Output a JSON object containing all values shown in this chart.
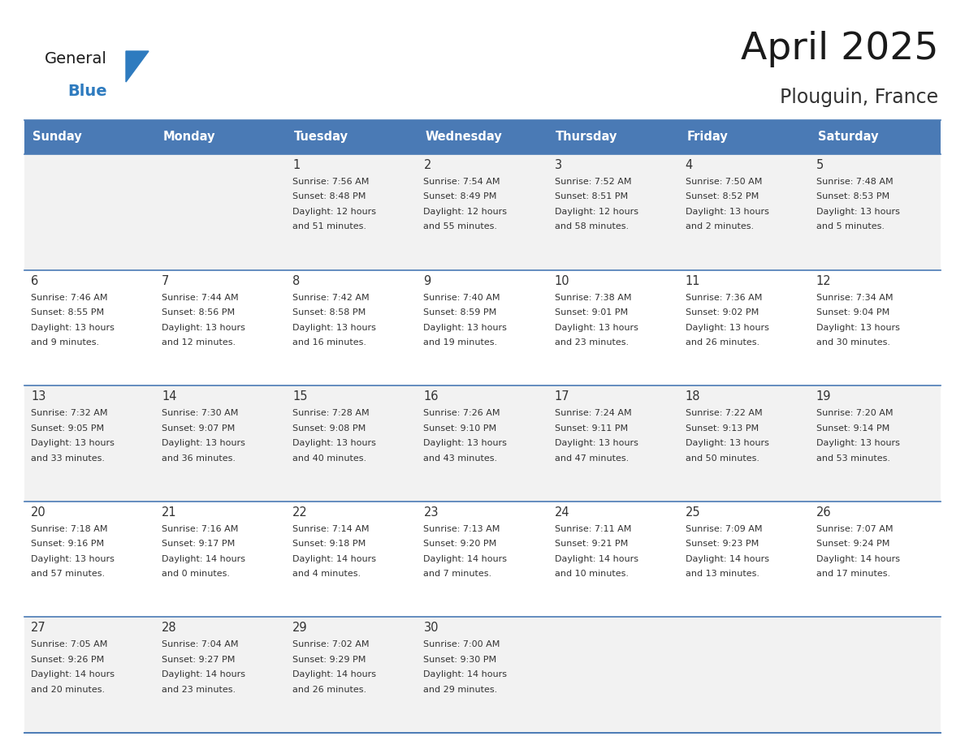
{
  "title": "April 2025",
  "subtitle": "Plouguin, France",
  "header_color": "#4a7ab5",
  "header_text_color": "#ffffff",
  "text_color": "#333333",
  "line_color": "#4a7ab5",
  "day_headers": [
    "Sunday",
    "Monday",
    "Tuesday",
    "Wednesday",
    "Thursday",
    "Friday",
    "Saturday"
  ],
  "logo_tri_color": "#2e7bbf",
  "logo_general_color": "#1a1a1a",
  "logo_blue_color": "#2e7bbf",
  "days": [
    {
      "day": null,
      "info": null
    },
    {
      "day": null,
      "info": null
    },
    {
      "day": "1",
      "info": [
        "Sunrise: 7:56 AM",
        "Sunset: 8:48 PM",
        "Daylight: 12 hours",
        "and 51 minutes."
      ]
    },
    {
      "day": "2",
      "info": [
        "Sunrise: 7:54 AM",
        "Sunset: 8:49 PM",
        "Daylight: 12 hours",
        "and 55 minutes."
      ]
    },
    {
      "day": "3",
      "info": [
        "Sunrise: 7:52 AM",
        "Sunset: 8:51 PM",
        "Daylight: 12 hours",
        "and 58 minutes."
      ]
    },
    {
      "day": "4",
      "info": [
        "Sunrise: 7:50 AM",
        "Sunset: 8:52 PM",
        "Daylight: 13 hours",
        "and 2 minutes."
      ]
    },
    {
      "day": "5",
      "info": [
        "Sunrise: 7:48 AM",
        "Sunset: 8:53 PM",
        "Daylight: 13 hours",
        "and 5 minutes."
      ]
    },
    {
      "day": "6",
      "info": [
        "Sunrise: 7:46 AM",
        "Sunset: 8:55 PM",
        "Daylight: 13 hours",
        "and 9 minutes."
      ]
    },
    {
      "day": "7",
      "info": [
        "Sunrise: 7:44 AM",
        "Sunset: 8:56 PM",
        "Daylight: 13 hours",
        "and 12 minutes."
      ]
    },
    {
      "day": "8",
      "info": [
        "Sunrise: 7:42 AM",
        "Sunset: 8:58 PM",
        "Daylight: 13 hours",
        "and 16 minutes."
      ]
    },
    {
      "day": "9",
      "info": [
        "Sunrise: 7:40 AM",
        "Sunset: 8:59 PM",
        "Daylight: 13 hours",
        "and 19 minutes."
      ]
    },
    {
      "day": "10",
      "info": [
        "Sunrise: 7:38 AM",
        "Sunset: 9:01 PM",
        "Daylight: 13 hours",
        "and 23 minutes."
      ]
    },
    {
      "day": "11",
      "info": [
        "Sunrise: 7:36 AM",
        "Sunset: 9:02 PM",
        "Daylight: 13 hours",
        "and 26 minutes."
      ]
    },
    {
      "day": "12",
      "info": [
        "Sunrise: 7:34 AM",
        "Sunset: 9:04 PM",
        "Daylight: 13 hours",
        "and 30 minutes."
      ]
    },
    {
      "day": "13",
      "info": [
        "Sunrise: 7:32 AM",
        "Sunset: 9:05 PM",
        "Daylight: 13 hours",
        "and 33 minutes."
      ]
    },
    {
      "day": "14",
      "info": [
        "Sunrise: 7:30 AM",
        "Sunset: 9:07 PM",
        "Daylight: 13 hours",
        "and 36 minutes."
      ]
    },
    {
      "day": "15",
      "info": [
        "Sunrise: 7:28 AM",
        "Sunset: 9:08 PM",
        "Daylight: 13 hours",
        "and 40 minutes."
      ]
    },
    {
      "day": "16",
      "info": [
        "Sunrise: 7:26 AM",
        "Sunset: 9:10 PM",
        "Daylight: 13 hours",
        "and 43 minutes."
      ]
    },
    {
      "day": "17",
      "info": [
        "Sunrise: 7:24 AM",
        "Sunset: 9:11 PM",
        "Daylight: 13 hours",
        "and 47 minutes."
      ]
    },
    {
      "day": "18",
      "info": [
        "Sunrise: 7:22 AM",
        "Sunset: 9:13 PM",
        "Daylight: 13 hours",
        "and 50 minutes."
      ]
    },
    {
      "day": "19",
      "info": [
        "Sunrise: 7:20 AM",
        "Sunset: 9:14 PM",
        "Daylight: 13 hours",
        "and 53 minutes."
      ]
    },
    {
      "day": "20",
      "info": [
        "Sunrise: 7:18 AM",
        "Sunset: 9:16 PM",
        "Daylight: 13 hours",
        "and 57 minutes."
      ]
    },
    {
      "day": "21",
      "info": [
        "Sunrise: 7:16 AM",
        "Sunset: 9:17 PM",
        "Daylight: 14 hours",
        "and 0 minutes."
      ]
    },
    {
      "day": "22",
      "info": [
        "Sunrise: 7:14 AM",
        "Sunset: 9:18 PM",
        "Daylight: 14 hours",
        "and 4 minutes."
      ]
    },
    {
      "day": "23",
      "info": [
        "Sunrise: 7:13 AM",
        "Sunset: 9:20 PM",
        "Daylight: 14 hours",
        "and 7 minutes."
      ]
    },
    {
      "day": "24",
      "info": [
        "Sunrise: 7:11 AM",
        "Sunset: 9:21 PM",
        "Daylight: 14 hours",
        "and 10 minutes."
      ]
    },
    {
      "day": "25",
      "info": [
        "Sunrise: 7:09 AM",
        "Sunset: 9:23 PM",
        "Daylight: 14 hours",
        "and 13 minutes."
      ]
    },
    {
      "day": "26",
      "info": [
        "Sunrise: 7:07 AM",
        "Sunset: 9:24 PM",
        "Daylight: 14 hours",
        "and 17 minutes."
      ]
    },
    {
      "day": "27",
      "info": [
        "Sunrise: 7:05 AM",
        "Sunset: 9:26 PM",
        "Daylight: 14 hours",
        "and 20 minutes."
      ]
    },
    {
      "day": "28",
      "info": [
        "Sunrise: 7:04 AM",
        "Sunset: 9:27 PM",
        "Daylight: 14 hours",
        "and 23 minutes."
      ]
    },
    {
      "day": "29",
      "info": [
        "Sunrise: 7:02 AM",
        "Sunset: 9:29 PM",
        "Daylight: 14 hours",
        "and 26 minutes."
      ]
    },
    {
      "day": "30",
      "info": [
        "Sunrise: 7:00 AM",
        "Sunset: 9:30 PM",
        "Daylight: 14 hours",
        "and 29 minutes."
      ]
    },
    {
      "day": null,
      "info": null
    },
    {
      "day": null,
      "info": null
    },
    {
      "day": null,
      "info": null
    }
  ]
}
